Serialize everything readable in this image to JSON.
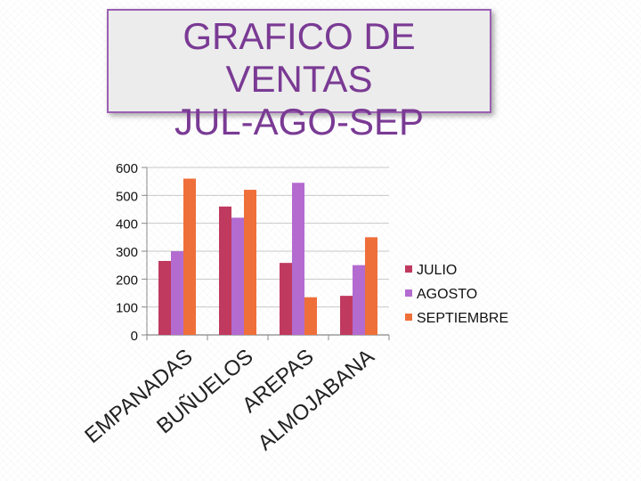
{
  "title": "GRAFICO DE\nVENTAS\nJUL-AGO-SEP",
  "colors": {
    "title_text": "#7a3a94",
    "title_border": "#9b5fb3",
    "grid": "#c8c8c8",
    "axis": "#888888"
  },
  "chart_data": {
    "type": "bar",
    "categories": [
      "EMPANADAS",
      "BUÑUELOS",
      "AREPAS",
      "ALMOJABANA"
    ],
    "series": [
      {
        "name": "JULIO",
        "color": "#c0395f",
        "values": [
          265,
          460,
          258,
          140
        ]
      },
      {
        "name": "AGOSTO",
        "color": "#b36bd0",
        "values": [
          300,
          420,
          545,
          250
        ]
      },
      {
        "name": "SEPTIEMBRE",
        "color": "#ef6f3a",
        "values": [
          560,
          520,
          135,
          350
        ]
      }
    ],
    "yticks": [
      "0",
      "100",
      "200",
      "300",
      "400",
      "500",
      "600"
    ],
    "ylim": [
      0,
      600
    ],
    "grid": true,
    "legend": "right"
  }
}
